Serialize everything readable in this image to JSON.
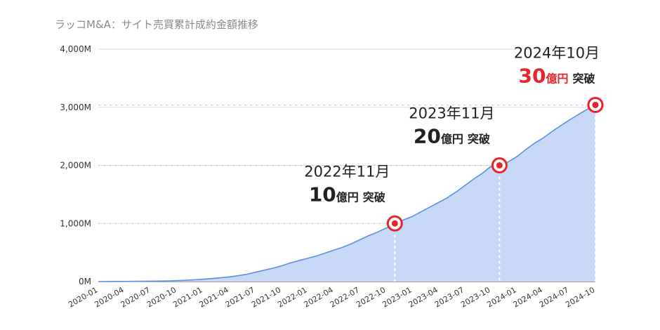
{
  "title": "ラッコM&A：サイト売買累計成約金額推移",
  "colors": {
    "line": "#5b8fe0",
    "fill": "#c8d9f8",
    "marker": "#e8232a",
    "highlight": "#e8232a",
    "text": "#222222"
  },
  "chart_data": {
    "type": "area",
    "title": "ラッコM&A：サイト売買累計成約金額推移",
    "ylim": [
      0,
      4000
    ],
    "yticks": [
      {
        "value": 0,
        "label": "0M"
      },
      {
        "value": 1000,
        "label": "1,000M"
      },
      {
        "value": 2000,
        "label": "2,000M"
      },
      {
        "value": 3000,
        "label": "3,000M"
      },
      {
        "value": 4000,
        "label": "4,000M"
      }
    ],
    "x": [
      "2020-01",
      "2020-02",
      "2020-03",
      "2020-04",
      "2020-05",
      "2020-06",
      "2020-07",
      "2020-08",
      "2020-09",
      "2020-10",
      "2020-11",
      "2020-12",
      "2021-01",
      "2021-02",
      "2021-03",
      "2021-04",
      "2021-05",
      "2021-06",
      "2021-07",
      "2021-08",
      "2021-09",
      "2021-10",
      "2021-11",
      "2021-12",
      "2022-01",
      "2022-02",
      "2022-03",
      "2022-04",
      "2022-05",
      "2022-06",
      "2022-07",
      "2022-08",
      "2022-09",
      "2022-10",
      "2022-11",
      "2022-12",
      "2023-01",
      "2023-02",
      "2023-03",
      "2023-04",
      "2023-05",
      "2023-06",
      "2023-07",
      "2023-08",
      "2023-09",
      "2023-10",
      "2023-11",
      "2023-12",
      "2024-01",
      "2024-02",
      "2024-03",
      "2024-04",
      "2024-05",
      "2024-06",
      "2024-07",
      "2024-08",
      "2024-09",
      "2024-10"
    ],
    "xtick_labels": [
      "2020-01",
      "2020-04",
      "2020-07",
      "2020-10",
      "2021-01",
      "2021-04",
      "2021-07",
      "2021-10",
      "2022-01",
      "2022-04",
      "2022-07",
      "2022-10",
      "2023-01",
      "2023-04",
      "2023-07",
      "2023-10",
      "2024-01",
      "2024-04",
      "2024-07",
      "2024-10"
    ],
    "values": [
      0,
      1,
      2,
      3,
      4,
      5,
      7,
      9,
      12,
      16,
      22,
      30,
      40,
      52,
      65,
      80,
      100,
      125,
      160,
      195,
      230,
      270,
      320,
      360,
      400,
      440,
      490,
      540,
      590,
      650,
      720,
      790,
      850,
      920,
      1000,
      1060,
      1120,
      1200,
      1280,
      1360,
      1440,
      1540,
      1650,
      1760,
      1860,
      1980,
      2000,
      2060,
      2150,
      2270,
      2380,
      2470,
      2580,
      2680,
      2780,
      2870,
      2960,
      3040
    ],
    "milestones": [
      {
        "x": "2022-11",
        "value": 1000,
        "date": "2022年11月",
        "amount": "10",
        "unit": "億円",
        "suffix": "突破",
        "highlight": false
      },
      {
        "x": "2023-11",
        "value": 2000,
        "date": "2023年11月",
        "amount": "20",
        "unit": "億円",
        "suffix": "突破",
        "highlight": false
      },
      {
        "x": "2024-10",
        "value": 3040,
        "date": "2024年10月",
        "amount": "30",
        "unit": "億円",
        "suffix": "突破",
        "highlight": true
      }
    ],
    "grid": true
  }
}
